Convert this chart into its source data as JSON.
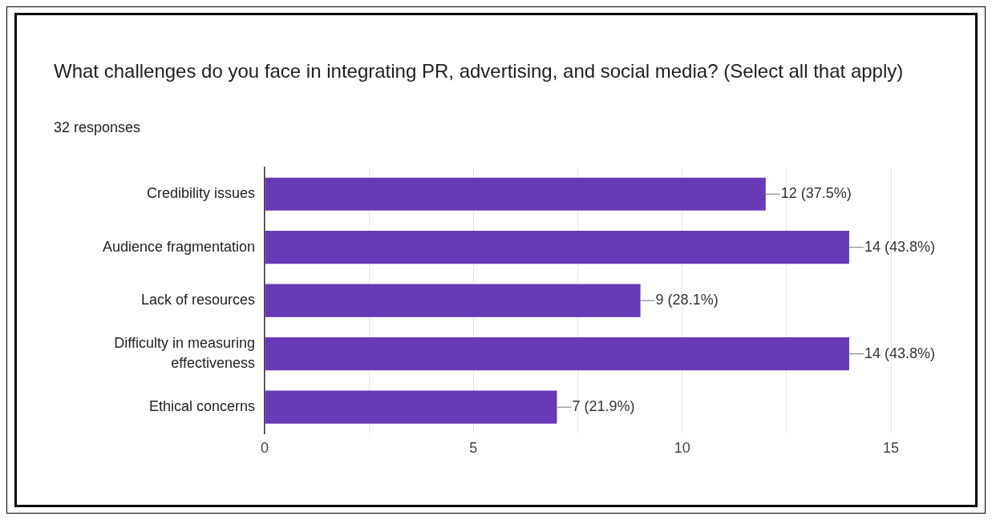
{
  "chart_data": {
    "type": "bar",
    "orientation": "horizontal",
    "title": "What challenges do you face in integrating PR, advertising, and social media? (Select all that apply)",
    "subtitle": "32 responses",
    "categories": [
      "Credibility issues",
      "Audience fragmentation",
      "Lack of resources",
      "Difficulty in measuring effectiveness",
      "Ethical concerns"
    ],
    "values": [
      12,
      14,
      9,
      14,
      7
    ],
    "value_labels": [
      "12 (37.5%)",
      "14 (43.8%)",
      "9 (28.1%)",
      "14 (43.8%)",
      "7 (21.9%)"
    ],
    "color": "#673ab7",
    "xlim": [
      0,
      15
    ],
    "xticks": [
      0,
      {
        "value": 2.5,
        "label": null
      },
      5,
      {
        "value": 7.5,
        "label": null
      },
      10,
      {
        "value": 12.5,
        "label": null
      },
      15
    ],
    "grid": "x",
    "legend": false
  }
}
